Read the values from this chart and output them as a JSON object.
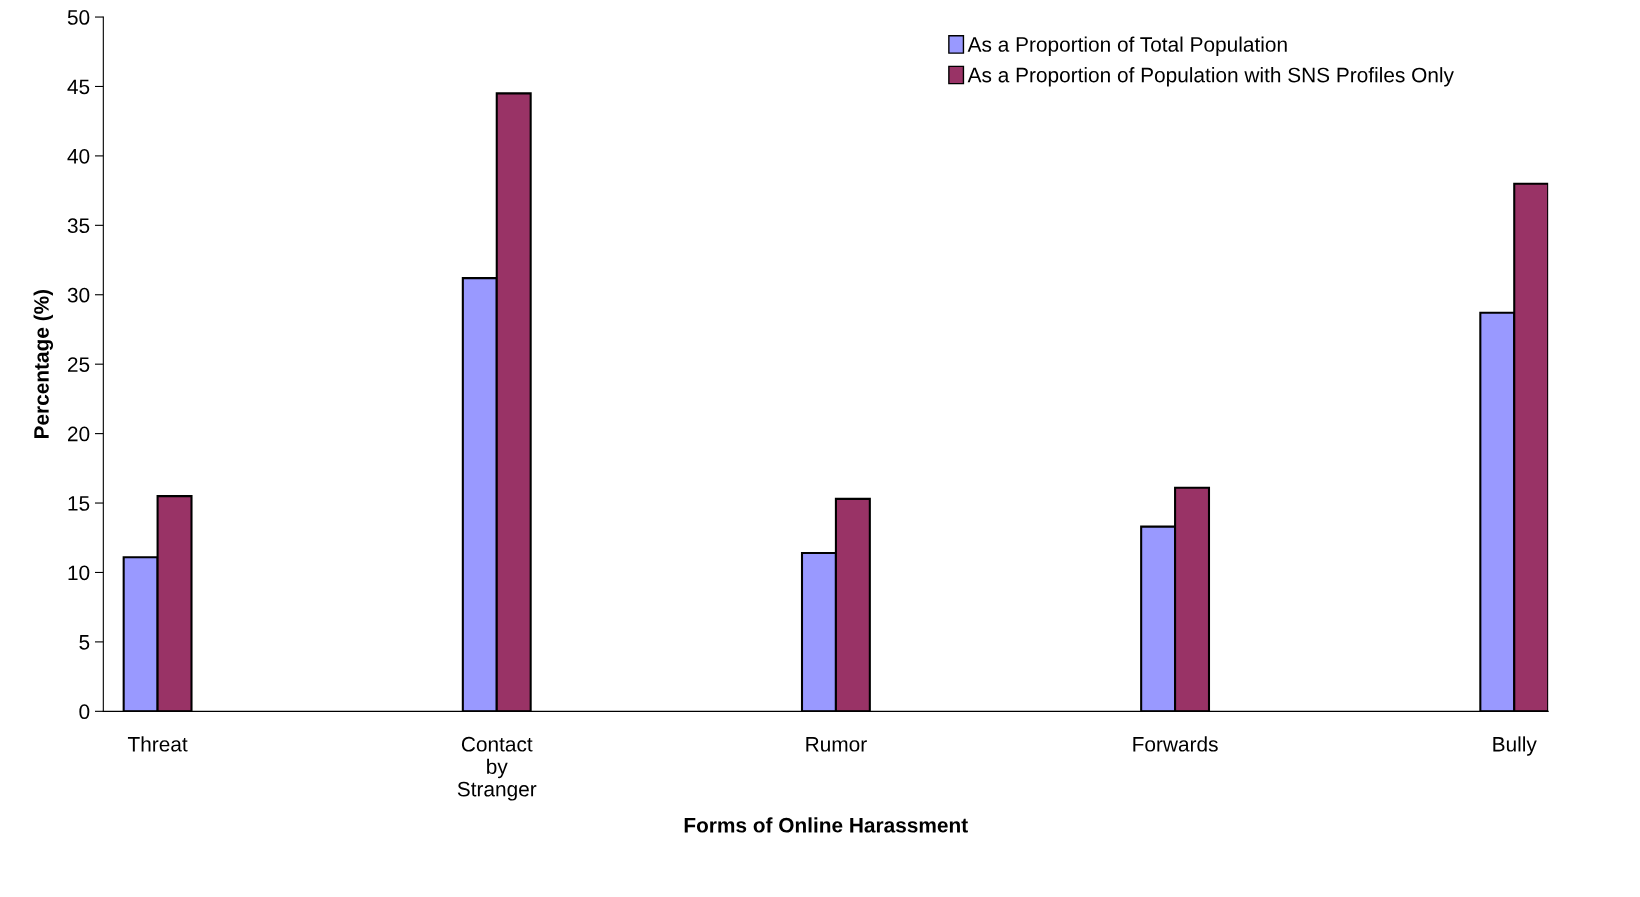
{
  "chart_data": {
    "type": "bar",
    "xlabel": "Forms of Online Harassment",
    "ylabel": "Percentage (%)",
    "categories": [
      "Threat",
      "Contact\nby\nStranger",
      "Rumor",
      "Forwards",
      "Bully"
    ],
    "series": [
      {
        "name": "As a Proportion of Total Population",
        "color": "#9999ff",
        "values": [
          11.1,
          31.2,
          11.4,
          13.3,
          28.7
        ]
      },
      {
        "name": "As a Proportion of Population with SNS Profiles Only",
        "color": "#993366",
        "values": [
          15.5,
          44.5,
          15.3,
          16.1,
          38.0
        ]
      }
    ],
    "ylim": [
      0,
      50
    ],
    "yticks": [
      0,
      5,
      10,
      15,
      20,
      25,
      30,
      35,
      40,
      45,
      50
    ],
    "grid": false,
    "legend": "top"
  }
}
